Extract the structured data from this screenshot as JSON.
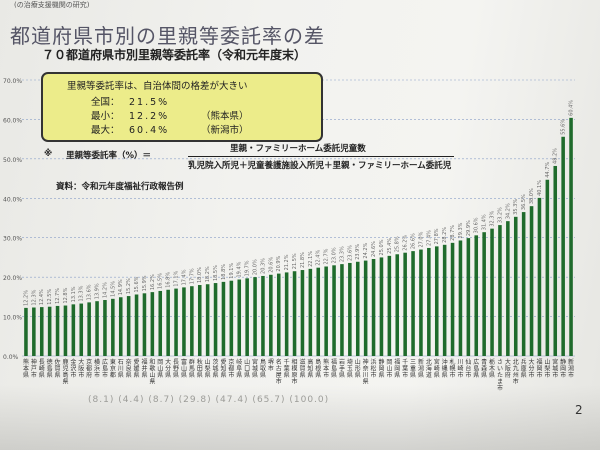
{
  "header_note": "(の治療支援機関の研究)",
  "title": "都道府県市別の里親等委託率の差",
  "subtitle": "７０都道府県市別里親等委託率（令和元年度末）",
  "callout": {
    "title": "里親等委託率は、自治体間の格差が大きい",
    "rows": [
      {
        "label": "全国：",
        "value": "21.5%",
        "note": ""
      },
      {
        "label": "最小：",
        "value": "12.2%",
        "note": "（熊本県）"
      },
      {
        "label": "最大：",
        "value": "60.4%",
        "note": "（新潟市）"
      }
    ]
  },
  "formula": {
    "mark": "※",
    "lhs": "里親等委託率（%）＝",
    "numerator": "里親・ファミリーホーム委託児童数",
    "denominator": "乳児院入所児＋児童養護施設入所児＋里親・ファミリーホーム委託児"
  },
  "source": "資料：令和元年度福祉行政報告例",
  "page_number": "2",
  "ghost_row": "(8.1)  (4.4)  (8.7)  (29.8)  (47.4)  (65.7)  (100.0)",
  "colors": {
    "bar": "#1f6b2c",
    "grid": "#8aa0c8",
    "callout": "#ecec8a"
  },
  "chart_data": {
    "type": "bar",
    "title": "７０都道府県市別里親等委託率（令和元年度末）",
    "ylabel": "",
    "ylim": [
      0,
      70
    ],
    "yticks": [
      "0.0%",
      "10.0%",
      "20.0%",
      "30.0%",
      "40.0%",
      "50.0%",
      "60.0%",
      "70.0%"
    ],
    "grid": true,
    "categories": [
      "熊本県",
      "神戸市",
      "長崎県",
      "徳島県",
      "佐賀県",
      "鹿児島県",
      "金沢市",
      "大阪市",
      "京都府",
      "横浜市",
      "広島市",
      "東京都",
      "石川県",
      "奈良県",
      "愛媛県",
      "福井県",
      "和歌山県",
      "岡山県",
      "大分県",
      "長野県",
      "富山県",
      "群馬県",
      "秋田県",
      "山梨県",
      "茨城県",
      "愛知県",
      "京都市",
      "岐阜県",
      "山口県",
      "宮城県",
      "鳥取県",
      "堺市",
      "名古屋市",
      "千葉県",
      "相模原市",
      "滋賀県",
      "高知県",
      "島根県",
      "熊本市",
      "福島県",
      "岩手県",
      "埼玉県",
      "山形県",
      "神奈川県",
      "浜松市",
      "静岡県",
      "岡山市",
      "福岡県",
      "千葉市",
      "三重県",
      "新潟県",
      "北海道",
      "宮崎県",
      "沖縄県",
      "札幌市",
      "川崎市",
      "仙台市",
      "広島県",
      "青森県",
      "栃木県",
      "さいたま市",
      "大阪府",
      "北九州市",
      "兵庫県",
      "大分市",
      "福岡市",
      "山梨市",
      "宮城市",
      "静岡市",
      "新潟市"
    ],
    "values": [
      12.2,
      12.3,
      12.4,
      12.5,
      12.7,
      12.8,
      13.1,
      13.3,
      13.6,
      13.9,
      14.2,
      14.5,
      14.9,
      15.2,
      15.6,
      15.9,
      16.2,
      16.5,
      16.8,
      17.1,
      17.4,
      17.7,
      18.0,
      18.2,
      18.5,
      18.8,
      19.1,
      19.4,
      19.7,
      20.0,
      20.3,
      20.6,
      20.9,
      21.2,
      21.5,
      21.8,
      22.1,
      22.4,
      22.7,
      23.0,
      23.3,
      23.6,
      23.9,
      24.2,
      24.6,
      25.0,
      25.4,
      25.8,
      26.2,
      26.6,
      27.0,
      27.4,
      27.8,
      28.2,
      28.7,
      29.3,
      29.9,
      30.6,
      31.4,
      32.3,
      33.2,
      34.2,
      35.3,
      36.5,
      38.0,
      40.1,
      44.7,
      48.2,
      55.6,
      60.4
    ]
  }
}
